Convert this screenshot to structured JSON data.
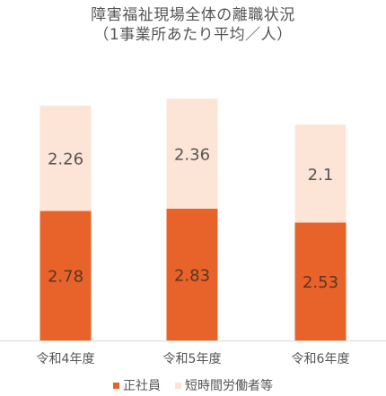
{
  "chart_data": {
    "type": "bar",
    "stacked": true,
    "title": "障害福祉現場全体の離職状況",
    "subtitle": "（1事業所あたり平均／人）",
    "categories": [
      "令和4年度",
      "令和5年度",
      "令和6年度"
    ],
    "series": [
      {
        "name": "正社員",
        "values": [
          2.78,
          2.83,
          2.53
        ],
        "color": "#e8632a"
      },
      {
        "name": "短時間労働者等",
        "values": [
          2.26,
          2.36,
          2.1
        ],
        "color": "#fce5d6"
      }
    ],
    "data_labels": [
      [
        "2.78",
        "2.83",
        "2.53"
      ],
      [
        "2.26",
        "2.36",
        "2.1"
      ]
    ],
    "ylim": [
      0,
      5.5
    ],
    "legend_position": "bottom",
    "grid": false
  }
}
